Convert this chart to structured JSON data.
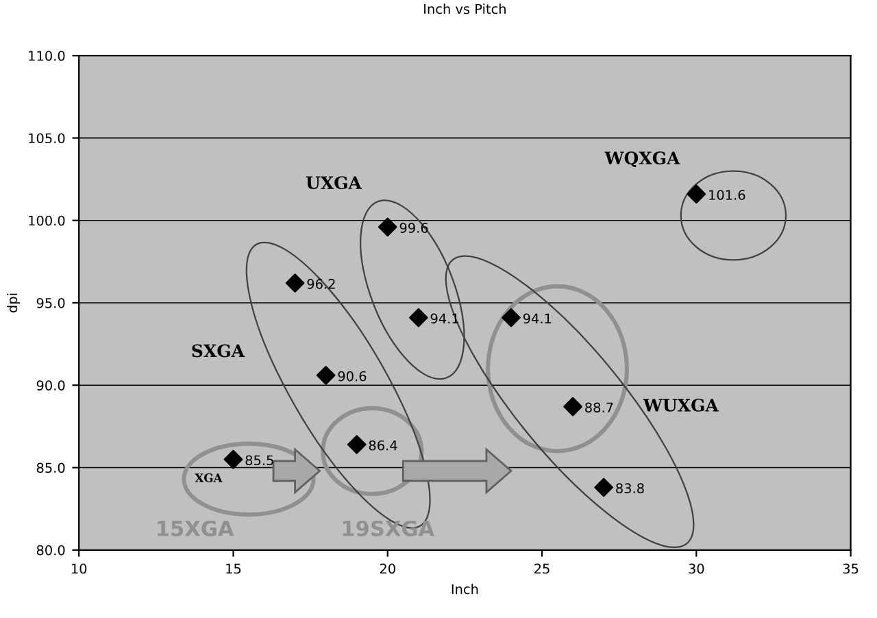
{
  "chart_data": {
    "type": "scatter",
    "title": "Inch vs Pitch",
    "xlabel": "Inch",
    "ylabel": "dpi",
    "x": [
      15,
      17,
      18,
      19,
      20,
      21,
      24,
      26,
      27,
      30
    ],
    "values": [
      85.5,
      96.2,
      90.6,
      86.4,
      99.6,
      94.1,
      94.1,
      88.7,
      83.8,
      101.6
    ],
    "color": "#000000",
    "marker": "diamond",
    "data_labels": true,
    "xlim": [
      10,
      35
    ],
    "xticks": [
      10,
      15,
      20,
      25,
      30,
      35
    ],
    "ylim": [
      80,
      110
    ],
    "yticks": [
      {
        "value": 80,
        "label": "80.0"
      },
      {
        "value": 85,
        "label": "85.0"
      },
      {
        "value": 90,
        "label": "90.0"
      },
      {
        "value": 95,
        "label": "95.0"
      },
      {
        "value": 100,
        "label": "100.0"
      },
      {
        "value": 105,
        "label": "105.0"
      },
      {
        "value": 110,
        "label": "110.0"
      }
    ],
    "grid": "y",
    "annotations": [
      "XGA",
      "SXGA",
      "UXGA",
      "WUXGA",
      "WQXGA",
      "15XGA",
      "19SXGA"
    ]
  }
}
